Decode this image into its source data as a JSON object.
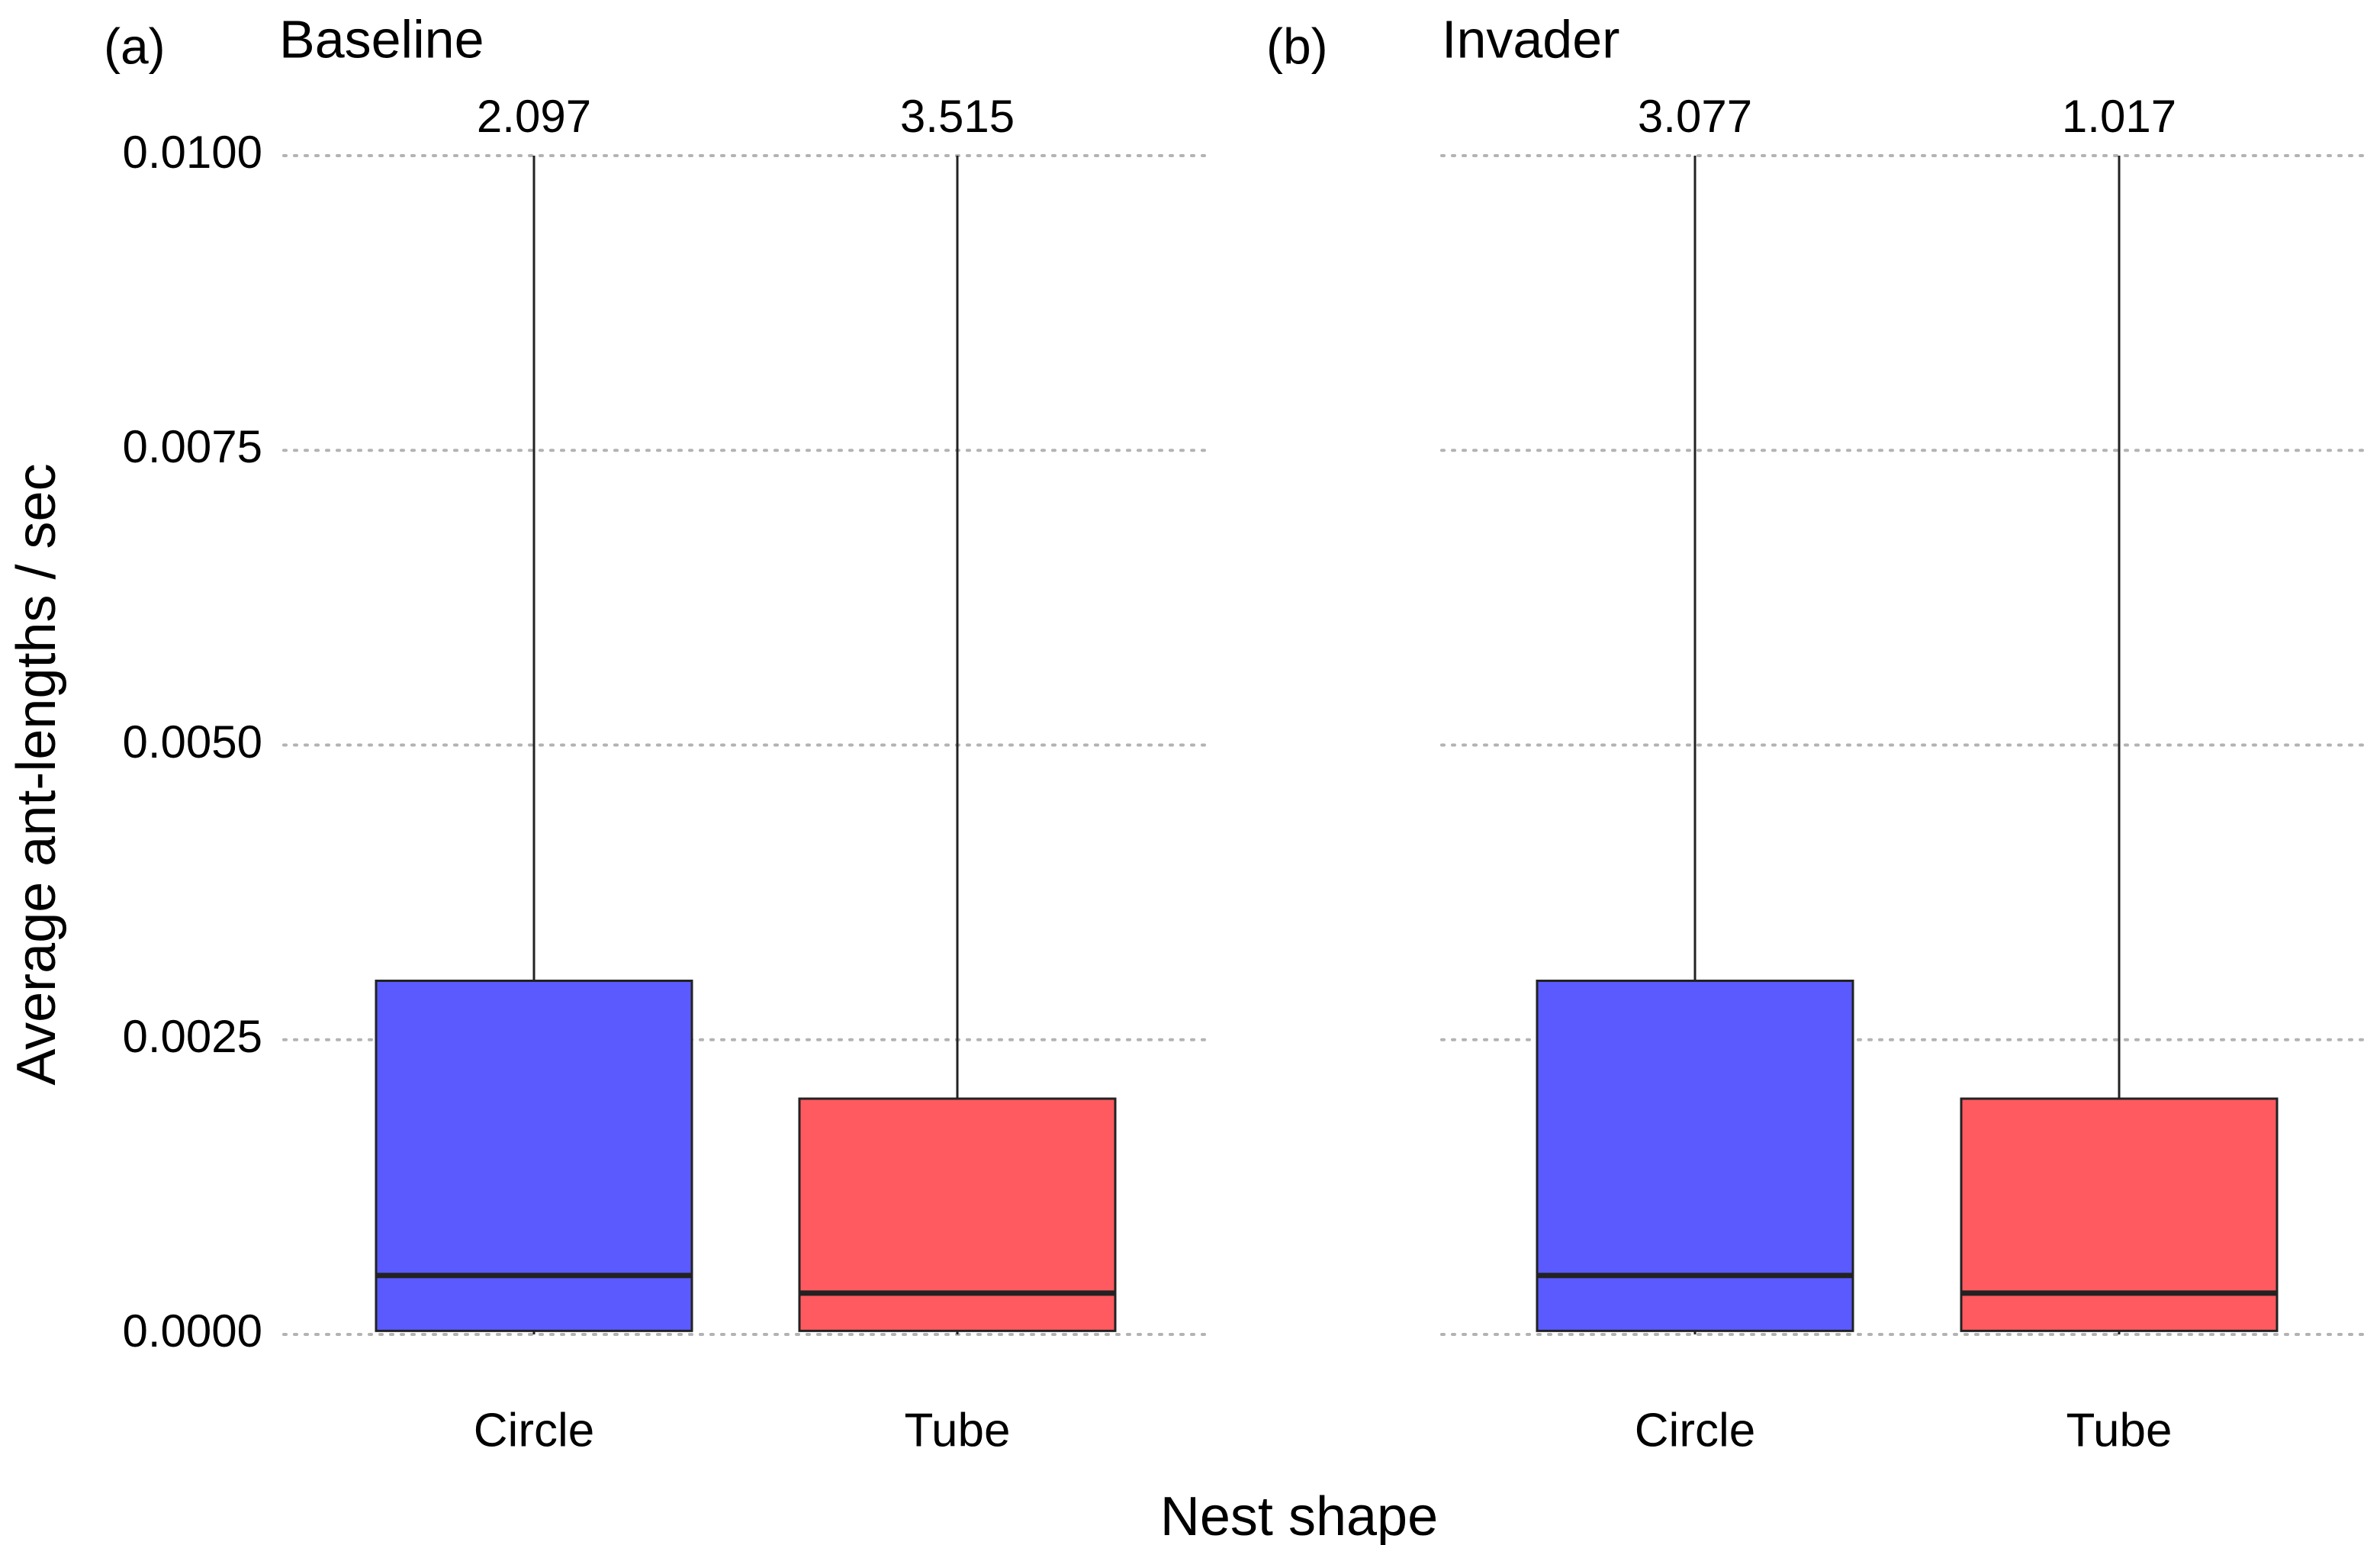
{
  "chart_data": [
    {
      "type": "box",
      "panel_tag": "(a)",
      "title": "Baseline",
      "xlabel": "Nest shape",
      "ylabel": "Average ant-lengths / sec",
      "ylim": [
        0,
        0.01
      ],
      "y_ticks": [
        "0.0000",
        "0.0025",
        "0.0050",
        "0.0075",
        "0.0100"
      ],
      "y_tick_values": [
        0,
        0.0025,
        0.005,
        0.0075,
        0.01
      ],
      "grid": "horizontal dotted",
      "categories": [
        "Circle",
        "Tube"
      ],
      "boxes": [
        {
          "category": "Circle",
          "q1": 3e-05,
          "median": 0.0005,
          "q3": 0.003,
          "whisker_low": 0.0,
          "whisker_high_clipped": 0.01,
          "whisker_high_label": "2.097",
          "fill": "#5a5aff"
        },
        {
          "category": "Tube",
          "q1": 3e-05,
          "median": 0.00035,
          "q3": 0.002,
          "whisker_low": 0.0,
          "whisker_high_clipped": 0.01,
          "whisker_high_label": "3.515",
          "fill": "#ff5a5f"
        }
      ]
    },
    {
      "type": "box",
      "panel_tag": "(b)",
      "title": "Invader",
      "xlabel": "Nest shape",
      "ylim": [
        0,
        0.01
      ],
      "grid": "horizontal dotted",
      "categories": [
        "Circle",
        "Tube"
      ],
      "boxes": [
        {
          "category": "Circle",
          "q1": 3e-05,
          "median": 0.0005,
          "q3": 0.003,
          "whisker_low": 0.0,
          "whisker_high_clipped": 0.01,
          "whisker_high_label": "3.077",
          "fill": "#5a5aff"
        },
        {
          "category": "Tube",
          "q1": 3e-05,
          "median": 0.00035,
          "q3": 0.002,
          "whisker_low": 0.0,
          "whisker_high_clipped": 0.01,
          "whisker_high_label": "1.017",
          "fill": "#ff5a5f"
        }
      ]
    }
  ],
  "colors": {
    "circle_fill": "#5a5aff",
    "tube_fill": "#ff5a5f",
    "outline": "#222222",
    "grid": "#b3b3b3"
  }
}
